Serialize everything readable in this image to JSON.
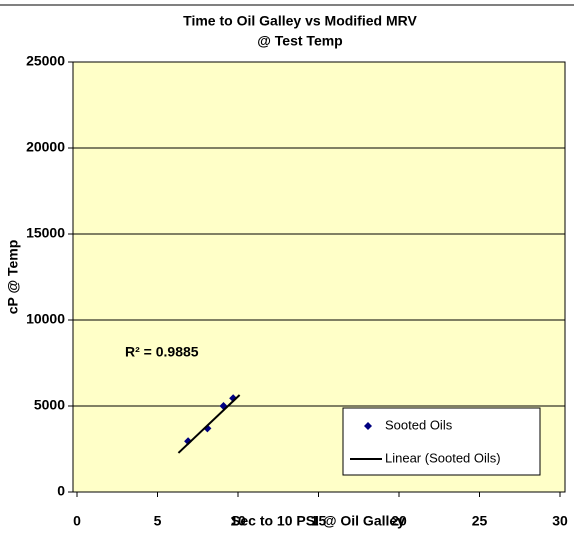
{
  "chart_data": {
    "type": "scatter",
    "title": "Time to Oil Galley vs Modified  MRV",
    "subtitle": "@ Test Temp",
    "x_label": "Sec to 10 PSI @ Oil Galley",
    "y_label": "cP @ Temp",
    "annotation": "R² = 0.9885",
    "xlim": [
      0,
      30
    ],
    "xticks": [
      0,
      5,
      10,
      15,
      20,
      25,
      30
    ],
    "ylim": [
      0,
      25000
    ],
    "yticks": [
      0,
      5000,
      10000,
      15000,
      20000,
      25000
    ],
    "grid": true,
    "legend": "lower right",
    "background": "#ffffc8",
    "series": [
      {
        "name": "Sooted Oils",
        "color": "#000080",
        "marker": "diamond",
        "x": [
          6.9,
          8.1,
          9.1,
          9.7
        ],
        "values": [
          2950,
          3700,
          5000,
          5450
        ]
      },
      {
        "name": "Linear (Sooted Oils)",
        "color": "#000000",
        "marker": "line",
        "x": [
          6.3,
          10.1
        ],
        "values": [
          2270,
          5640
        ]
      }
    ]
  }
}
